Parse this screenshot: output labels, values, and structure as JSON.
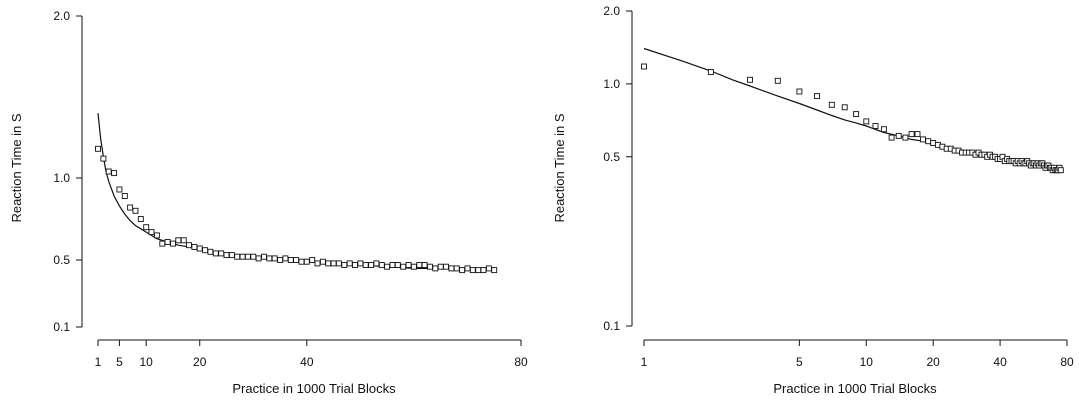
{
  "chart_data": [
    {
      "type": "scatter",
      "title": "",
      "xlabel": "Practice in 1000 Trial Blocks",
      "ylabel": "Reaction Time in S",
      "x_scale": "linear",
      "y_scale": "custom-compressed",
      "xlim": [
        1,
        80
      ],
      "ylim": [
        0.1,
        2.0
      ],
      "x_ticks": [
        {
          "value": 1,
          "label": "1"
        },
        {
          "value": 5,
          "label": "5"
        },
        {
          "value": 10,
          "label": "10"
        },
        {
          "value": 20,
          "label": "20"
        },
        {
          "value": 40,
          "label": "40"
        },
        {
          "value": 80,
          "label": "80"
        }
      ],
      "y_ticks": [
        {
          "value": 2.0,
          "label": "2.0"
        },
        {
          "value": 1.0,
          "label": "1.0"
        },
        {
          "value": 0.5,
          "label": "0.5"
        },
        {
          "value": 0.1,
          "label": "0.1"
        }
      ],
      "grid": false,
      "legend": "none",
      "series": [
        {
          "kind": "points",
          "marker": "open-square",
          "x": [
            1,
            2,
            3,
            4,
            5,
            6,
            7,
            8,
            9,
            10,
            11,
            12,
            13,
            14,
            15,
            16,
            17,
            18,
            19,
            20,
            21,
            22,
            23,
            24,
            25,
            26,
            27,
            28,
            29,
            30,
            31,
            32,
            33,
            34,
            35,
            36,
            37,
            38,
            39,
            40,
            41,
            42,
            43,
            44,
            45,
            46,
            47,
            48,
            49,
            50,
            51,
            52,
            53,
            54,
            55,
            56,
            57,
            58,
            59,
            60,
            61,
            62,
            63,
            64,
            65,
            66,
            67,
            68,
            69,
            70,
            71,
            72,
            73,
            74,
            75
          ],
          "y": [
            1.18,
            1.12,
            1.04,
            1.03,
            0.93,
            0.89,
            0.82,
            0.8,
            0.75,
            0.7,
            0.67,
            0.65,
            0.6,
            0.61,
            0.6,
            0.62,
            0.62,
            0.59,
            0.58,
            0.57,
            0.56,
            0.55,
            0.54,
            0.54,
            0.53,
            0.53,
            0.52,
            0.52,
            0.52,
            0.52,
            0.51,
            0.52,
            0.51,
            0.51,
            0.5,
            0.51,
            0.5,
            0.5,
            0.49,
            0.49,
            0.5,
            0.48,
            0.49,
            0.48,
            0.48,
            0.48,
            0.47,
            0.48,
            0.47,
            0.48,
            0.47,
            0.47,
            0.48,
            0.47,
            0.46,
            0.47,
            0.47,
            0.46,
            0.47,
            0.46,
            0.47,
            0.47,
            0.46,
            0.45,
            0.46,
            0.46,
            0.45,
            0.45,
            0.44,
            0.45,
            0.44,
            0.44,
            0.44,
            0.45,
            0.44
          ]
        },
        {
          "kind": "line",
          "x": [
            1,
            1.5,
            2,
            2.5,
            3,
            4,
            5,
            6,
            7,
            8,
            9,
            10,
            12,
            14,
            16,
            18,
            20,
            24,
            28,
            32,
            36,
            40,
            45,
            50,
            55,
            60,
            65,
            70,
            75
          ],
          "y": [
            1.4,
            1.24,
            1.13,
            1.04,
            0.98,
            0.89,
            0.83,
            0.78,
            0.74,
            0.71,
            0.69,
            0.67,
            0.63,
            0.61,
            0.59,
            0.58,
            0.56,
            0.54,
            0.53,
            0.51,
            0.5,
            0.49,
            0.48,
            0.47,
            0.46,
            0.45,
            0.45,
            0.44,
            0.44
          ]
        }
      ]
    },
    {
      "type": "scatter",
      "title": "",
      "xlabel": "Practice in 1000 Trial Blocks",
      "ylabel": "Reaction Time in S",
      "x_scale": "log",
      "y_scale": "log",
      "xlim": [
        1,
        80
      ],
      "ylim": [
        0.1,
        2.0
      ],
      "x_ticks": [
        {
          "value": 1,
          "label": "1"
        },
        {
          "value": 5,
          "label": "5"
        },
        {
          "value": 10,
          "label": "10"
        },
        {
          "value": 20,
          "label": "20"
        },
        {
          "value": 40,
          "label": "40"
        },
        {
          "value": 80,
          "label": "80"
        }
      ],
      "y_ticks": [
        {
          "value": 2.0,
          "label": "2.0"
        },
        {
          "value": 1.0,
          "label": "1.0"
        },
        {
          "value": 0.5,
          "label": "0.5"
        },
        {
          "value": 0.1,
          "label": "0.1"
        }
      ],
      "grid": false,
      "legend": "none",
      "series": [
        {
          "kind": "points",
          "marker": "open-square",
          "x": [
            1,
            2,
            3,
            4,
            5,
            6,
            7,
            8,
            9,
            10,
            11,
            12,
            13,
            14,
            15,
            16,
            17,
            18,
            19,
            20,
            21,
            22,
            23,
            24,
            25,
            26,
            27,
            28,
            29,
            30,
            31,
            32,
            33,
            34,
            35,
            36,
            37,
            38,
            39,
            40,
            41,
            42,
            43,
            44,
            45,
            46,
            47,
            48,
            49,
            50,
            51,
            52,
            53,
            54,
            55,
            56,
            57,
            58,
            59,
            60,
            61,
            62,
            63,
            64,
            65,
            66,
            67,
            68,
            69,
            70,
            71,
            72,
            73,
            74,
            75
          ],
          "y": [
            1.18,
            1.12,
            1.04,
            1.03,
            0.93,
            0.89,
            0.82,
            0.8,
            0.75,
            0.7,
            0.67,
            0.65,
            0.6,
            0.61,
            0.6,
            0.62,
            0.62,
            0.59,
            0.58,
            0.57,
            0.56,
            0.55,
            0.54,
            0.54,
            0.53,
            0.53,
            0.52,
            0.52,
            0.52,
            0.52,
            0.51,
            0.52,
            0.51,
            0.51,
            0.5,
            0.51,
            0.5,
            0.5,
            0.49,
            0.49,
            0.5,
            0.48,
            0.49,
            0.48,
            0.48,
            0.48,
            0.47,
            0.48,
            0.47,
            0.48,
            0.47,
            0.47,
            0.48,
            0.47,
            0.46,
            0.47,
            0.47,
            0.46,
            0.47,
            0.46,
            0.47,
            0.47,
            0.46,
            0.45,
            0.46,
            0.46,
            0.45,
            0.45,
            0.44,
            0.45,
            0.44,
            0.44,
            0.44,
            0.45,
            0.44
          ]
        },
        {
          "kind": "line",
          "x": [
            1,
            1.5,
            2,
            2.5,
            3,
            4,
            5,
            6,
            7,
            8,
            9,
            10,
            12,
            14,
            16,
            18,
            20,
            24,
            28,
            32,
            36,
            40,
            45,
            50,
            55,
            60,
            65,
            70,
            75
          ],
          "y": [
            1.4,
            1.24,
            1.13,
            1.04,
            0.98,
            0.89,
            0.83,
            0.78,
            0.74,
            0.71,
            0.69,
            0.67,
            0.63,
            0.61,
            0.59,
            0.58,
            0.56,
            0.54,
            0.53,
            0.51,
            0.5,
            0.49,
            0.48,
            0.47,
            0.46,
            0.45,
            0.45,
            0.44,
            0.44
          ]
        }
      ]
    }
  ]
}
